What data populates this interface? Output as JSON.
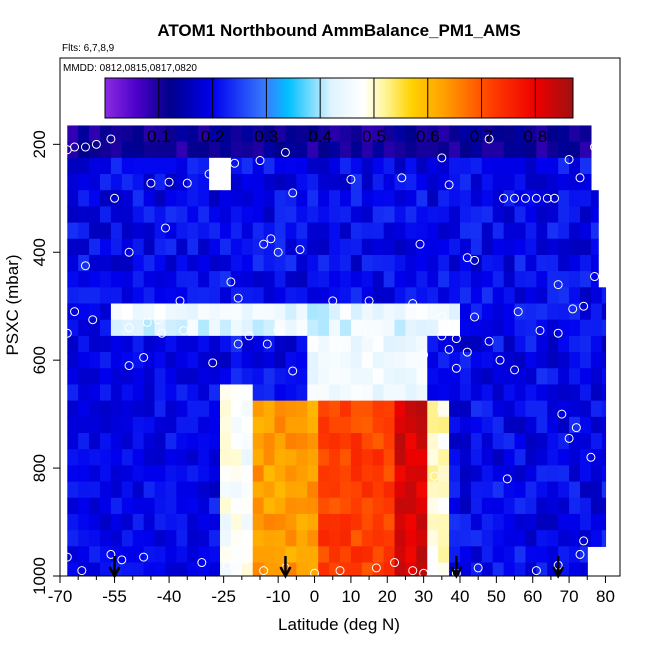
{
  "chart_data": {
    "type": "heatmap",
    "title": "ATOM1 Northbound AmmBalance_PM1_AMS",
    "flights_label": "Flts: 6,7,8,9",
    "dates_label": "MMDD: 0812,0815,0817,0820",
    "xlabel": "Latitude (deg N)",
    "ylabel": "PSXC (mbar)",
    "xlim": [
      -70,
      84
    ],
    "ylim": [
      1000,
      40
    ],
    "x_ticks": [
      -70,
      -55,
      -40,
      -25,
      -10,
      0,
      10,
      20,
      30,
      40,
      50,
      60,
      70,
      80
    ],
    "x_tick_labels": [
      "-70",
      "-55",
      "-40",
      "-25",
      "-10",
      "0",
      "10",
      "20",
      "30",
      "40",
      "50",
      "60",
      "70",
      "80"
    ],
    "x_minor_ticks": [
      -65,
      -60,
      -50,
      -45,
      -35,
      -30,
      -20,
      -15,
      -5,
      5,
      15,
      25,
      35,
      45,
      55,
      65,
      75
    ],
    "y_ticks": [
      200,
      400,
      600,
      800,
      1000
    ],
    "y_tick_labels": [
      "200",
      "400",
      "600",
      "800",
      "1000"
    ],
    "colorbar": {
      "range": [
        0.0,
        0.87
      ],
      "ticks": [
        0.1,
        0.2,
        0.3,
        0.4,
        0.5,
        0.6,
        0.7,
        0.8
      ],
      "tick_labels": [
        "0.1",
        "0.2",
        "0.3",
        "0.4",
        "0.5",
        "0.6",
        "0.7",
        "0.8"
      ],
      "stops": [
        [
          0.0,
          "#8a2be2"
        ],
        [
          0.06,
          "#4b00c8"
        ],
        [
          0.12,
          "#00008b"
        ],
        [
          0.2,
          "#0000ee"
        ],
        [
          0.3,
          "#3a7dff"
        ],
        [
          0.34,
          "#00bfff"
        ],
        [
          0.42,
          "#dff3ff"
        ],
        [
          0.48,
          "#ffffff"
        ],
        [
          0.52,
          "#fff59a"
        ],
        [
          0.57,
          "#ffd200"
        ],
        [
          0.63,
          "#ffa000"
        ],
        [
          0.72,
          "#ff3c00"
        ],
        [
          0.8,
          "#ee0000"
        ],
        [
          0.87,
          "#a01010"
        ]
      ]
    },
    "pressure_levels": [
      180,
      210,
      240,
      270,
      300,
      330,
      360,
      390,
      420,
      450,
      480,
      510,
      540,
      570,
      600,
      630,
      660,
      690,
      720,
      750,
      780,
      810,
      840,
      870,
      900,
      930,
      960,
      990
    ],
    "grid_x_range": [
      -68,
      76
    ],
    "column_count": 50,
    "column_lat_step": 3,
    "zones": [
      {
        "lat_range": [
          -70,
          -28
        ],
        "p_range": [
          450,
          1000
        ],
        "value": 0.2
      },
      {
        "lat_range": [
          -27,
          -18
        ],
        "p_range": [
          650,
          1000
        ],
        "value": 0.47
      },
      {
        "lat_range": [
          -18,
          0
        ],
        "p_range": [
          680,
          1000
        ],
        "value": 0.63
      },
      {
        "lat_range": [
          0,
          22
        ],
        "p_range": [
          680,
          1000
        ],
        "value": 0.72
      },
      {
        "lat_range": [
          22,
          30
        ],
        "p_range": [
          680,
          1000
        ],
        "value": 0.82
      },
      {
        "lat_range": [
          30,
          36
        ],
        "p_range": [
          680,
          1000
        ],
        "value": 0.5
      },
      {
        "lat_range": [
          -3,
          30
        ],
        "p_range": [
          560,
          660
        ],
        "value": 0.45
      }
    ],
    "markers": [
      {
        "lat": -68,
        "p": 210
      },
      {
        "lat": -66,
        "p": 205
      },
      {
        "lat": -63,
        "p": 205
      },
      {
        "lat": -60,
        "p": 200
      },
      {
        "lat": -56,
        "p": 190
      },
      {
        "lat": -22,
        "p": 235
      },
      {
        "lat": -15,
        "p": 230
      },
      {
        "lat": -8,
        "p": 215
      },
      {
        "lat": 35,
        "p": 225
      },
      {
        "lat": 48,
        "p": 190
      },
      {
        "lat": 70,
        "p": 228
      },
      {
        "lat": 77,
        "p": 205
      },
      {
        "lat": -55,
        "p": 300
      },
      {
        "lat": -45,
        "p": 272
      },
      {
        "lat": -40,
        "p": 270
      },
      {
        "lat": -35,
        "p": 272
      },
      {
        "lat": -29,
        "p": 255
      },
      {
        "lat": -6,
        "p": 290
      },
      {
        "lat": 10,
        "p": 265
      },
      {
        "lat": 24,
        "p": 262
      },
      {
        "lat": 37,
        "p": 275
      },
      {
        "lat": 52,
        "p": 300
      },
      {
        "lat": 55,
        "p": 300
      },
      {
        "lat": 58,
        "p": 300
      },
      {
        "lat": 61,
        "p": 300
      },
      {
        "lat": 64,
        "p": 300
      },
      {
        "lat": 66,
        "p": 300
      },
      {
        "lat": 73,
        "p": 262
      },
      {
        "lat": -14,
        "p": 385
      },
      {
        "lat": -12,
        "p": 375
      },
      {
        "lat": 29,
        "p": 385
      },
      {
        "lat": -10,
        "p": 400
      },
      {
        "lat": -4,
        "p": 395
      },
      {
        "lat": 42,
        "p": 410
      },
      {
        "lat": 44,
        "p": 415
      },
      {
        "lat": -63,
        "p": 425
      },
      {
        "lat": -51,
        "p": 400
      },
      {
        "lat": -41,
        "p": 355
      },
      {
        "lat": 67,
        "p": 460
      },
      {
        "lat": -23,
        "p": 455
      },
      {
        "lat": 77,
        "p": 445
      },
      {
        "lat": -37,
        "p": 490
      },
      {
        "lat": -21,
        "p": 485
      },
      {
        "lat": 5,
        "p": 490
      },
      {
        "lat": 15,
        "p": 490
      },
      {
        "lat": 27,
        "p": 495
      },
      {
        "lat": -66,
        "p": 510
      },
      {
        "lat": -61,
        "p": 525
      },
      {
        "lat": -46,
        "p": 530
      },
      {
        "lat": -43,
        "p": 525
      },
      {
        "lat": 35,
        "p": 520
      },
      {
        "lat": 44,
        "p": 520
      },
      {
        "lat": 56,
        "p": 510
      },
      {
        "lat": 71,
        "p": 505
      },
      {
        "lat": 74,
        "p": 500
      },
      {
        "lat": -68,
        "p": 550
      },
      {
        "lat": -42,
        "p": 550
      },
      {
        "lat": -51,
        "p": 540
      },
      {
        "lat": -36,
        "p": 545
      },
      {
        "lat": -18,
        "p": 555
      },
      {
        "lat": -10,
        "p": 545
      },
      {
        "lat": 15,
        "p": 550
      },
      {
        "lat": 35,
        "p": 555
      },
      {
        "lat": 39,
        "p": 560
      },
      {
        "lat": 62,
        "p": 545
      },
      {
        "lat": 67,
        "p": 550
      },
      {
        "lat": -21,
        "p": 570
      },
      {
        "lat": -13,
        "p": 570
      },
      {
        "lat": 0,
        "p": 565
      },
      {
        "lat": 8,
        "p": 575
      },
      {
        "lat": 37,
        "p": 580
      },
      {
        "lat": 48,
        "p": 565
      },
      {
        "lat": -51,
        "p": 610
      },
      {
        "lat": -47,
        "p": 595
      },
      {
        "lat": -28,
        "p": 605
      },
      {
        "lat": 30,
        "p": 590
      },
      {
        "lat": 42,
        "p": 585
      },
      {
        "lat": 51,
        "p": 600
      },
      {
        "lat": -6,
        "p": 620
      },
      {
        "lat": 55,
        "p": 618
      },
      {
        "lat": 39,
        "p": 615
      },
      {
        "lat": 35,
        "p": 690
      },
      {
        "lat": 68,
        "p": 700
      },
      {
        "lat": 72,
        "p": 725
      },
      {
        "lat": 70,
        "p": 745
      },
      {
        "lat": 33,
        "p": 815
      },
      {
        "lat": 53,
        "p": 820
      },
      {
        "lat": 76,
        "p": 780
      },
      {
        "lat": 74,
        "p": 935
      },
      {
        "lat": -68,
        "p": 965
      },
      {
        "lat": -64,
        "p": 990
      },
      {
        "lat": -56,
        "p": 960
      },
      {
        "lat": -53,
        "p": 970
      },
      {
        "lat": -47,
        "p": 965
      },
      {
        "lat": -31,
        "p": 975
      },
      {
        "lat": -24,
        "p": 980
      },
      {
        "lat": -19,
        "p": 970
      },
      {
        "lat": -14,
        "p": 990
      },
      {
        "lat": -8,
        "p": 985
      },
      {
        "lat": 0,
        "p": 995
      },
      {
        "lat": 7,
        "p": 990
      },
      {
        "lat": 17,
        "p": 985
      },
      {
        "lat": 22,
        "p": 975
      },
      {
        "lat": 27,
        "p": 990
      },
      {
        "lat": 30,
        "p": 995
      },
      {
        "lat": 39,
        "p": 995
      },
      {
        "lat": 45,
        "p": 985
      },
      {
        "lat": 61,
        "p": 990
      },
      {
        "lat": 67,
        "p": 980
      },
      {
        "lat": 73,
        "p": 960
      }
    ],
    "profile_arrows": [
      -55,
      -8,
      39,
      67
    ]
  }
}
